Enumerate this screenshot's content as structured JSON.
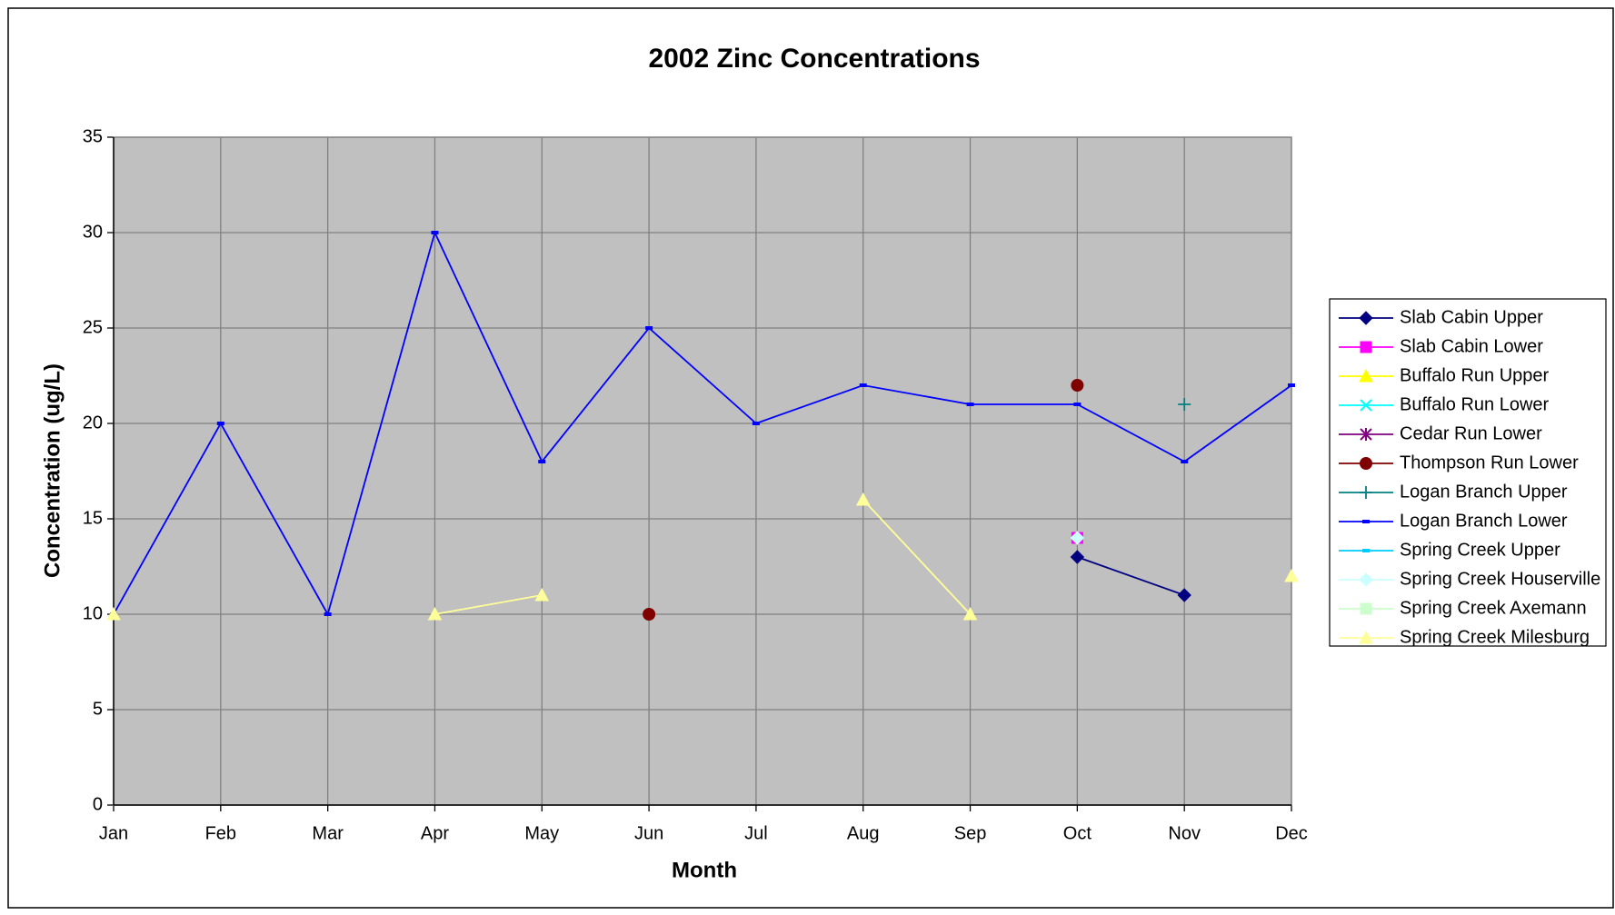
{
  "chart_data": {
    "type": "line",
    "title": "2002 Zinc Concentrations",
    "x_label": "Month",
    "y_label": "Concentration (ug/L)",
    "categories": [
      "Jan",
      "Feb",
      "Mar",
      "Apr",
      "May",
      "Jun",
      "Jul",
      "Aug",
      "Sep",
      "Oct",
      "Nov",
      "Dec"
    ],
    "ylim": [
      0,
      35
    ],
    "yticks": [
      0,
      5,
      10,
      15,
      20,
      25,
      30,
      35
    ],
    "grid": true,
    "legend": "right",
    "series": [
      {
        "name": "Slab Cabin Upper",
        "color": "#000080",
        "marker": "diamond",
        "values": [
          null,
          null,
          null,
          null,
          null,
          null,
          null,
          null,
          null,
          13,
          11,
          null
        ]
      },
      {
        "name": "Slab Cabin Lower",
        "color": "#ff00ff",
        "marker": "square",
        "values": [
          null,
          null,
          null,
          null,
          null,
          null,
          null,
          null,
          null,
          14,
          null,
          null
        ]
      },
      {
        "name": "Buffalo Run Upper",
        "color": "#ffff00",
        "marker": "triangle",
        "values": [
          null,
          null,
          null,
          null,
          null,
          null,
          null,
          null,
          null,
          null,
          null,
          null
        ]
      },
      {
        "name": "Buffalo Run Lower",
        "color": "#00ffff",
        "marker": "x",
        "values": [
          null,
          null,
          null,
          null,
          null,
          null,
          null,
          null,
          null,
          null,
          null,
          null
        ]
      },
      {
        "name": "Cedar Run Lower",
        "color": "#800080",
        "marker": "star",
        "values": [
          null,
          null,
          null,
          null,
          null,
          null,
          null,
          null,
          null,
          null,
          null,
          null
        ]
      },
      {
        "name": "Thompson Run Lower",
        "color": "#800000",
        "marker": "circle",
        "values": [
          null,
          null,
          null,
          null,
          null,
          10,
          null,
          null,
          null,
          22,
          null,
          null
        ]
      },
      {
        "name": "Logan Branch Upper",
        "color": "#008080",
        "marker": "plus",
        "values": [
          null,
          null,
          null,
          null,
          null,
          null,
          null,
          null,
          null,
          null,
          21,
          null
        ]
      },
      {
        "name": "Logan Branch Lower",
        "color": "#0000ff",
        "marker": "dash",
        "values": [
          10,
          20,
          10,
          30,
          18,
          25,
          20,
          22,
          21,
          21,
          18,
          22
        ]
      },
      {
        "name": "Spring Creek Upper",
        "color": "#00ccff",
        "marker": "dash",
        "values": [
          null,
          null,
          null,
          null,
          null,
          null,
          null,
          null,
          null,
          null,
          null,
          null
        ]
      },
      {
        "name": "Spring Creek Houserville",
        "color": "#ccffff",
        "marker": "diamond",
        "values": [
          null,
          null,
          null,
          null,
          null,
          null,
          null,
          null,
          null,
          14,
          null,
          null
        ]
      },
      {
        "name": "Spring Creek Axemann",
        "color": "#ccffcc",
        "marker": "square",
        "values": [
          null,
          null,
          null,
          null,
          null,
          null,
          null,
          null,
          null,
          null,
          null,
          null
        ]
      },
      {
        "name": "Spring Creek Milesburg",
        "color": "#ffff99",
        "marker": "triangle",
        "values": [
          10,
          null,
          null,
          10,
          11,
          null,
          null,
          16,
          10,
          null,
          null,
          12
        ]
      }
    ]
  }
}
